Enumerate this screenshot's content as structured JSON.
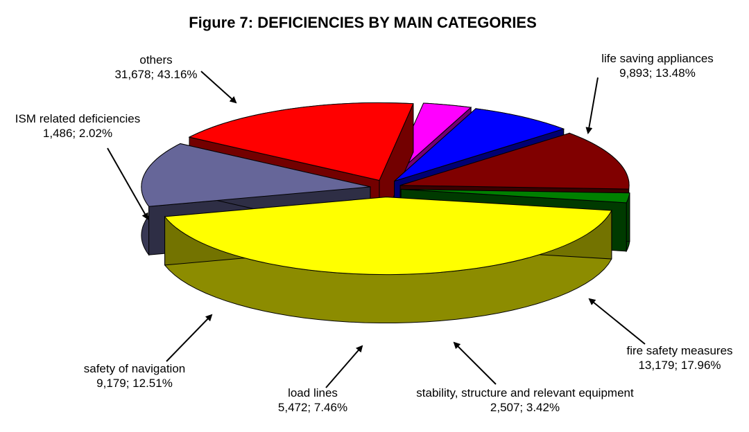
{
  "chart_data": {
    "type": "pie",
    "title": "Figure 7: DEFICIENCIES BY MAIN CATEGORIES",
    "slices": [
      {
        "name": "others",
        "count": 31678,
        "count_label": "31,678",
        "percent": 43.16,
        "percent_label": "43.16%",
        "color": "#ffff00"
      },
      {
        "name": "life saving appliances",
        "count": 9893,
        "count_label": "9,893",
        "percent": 13.48,
        "percent_label": "13.48%",
        "color": "#666699"
      },
      {
        "name": "fire safety measures",
        "count": 13179,
        "count_label": "13,179",
        "percent": 17.96,
        "percent_label": "17.96%",
        "color": "#ff0000"
      },
      {
        "name": "stability, structure and relevant equipment",
        "count": 2507,
        "count_label": "2,507",
        "percent": 3.42,
        "percent_label": "3.42%",
        "color": "#ff00ff"
      },
      {
        "name": "load lines",
        "count": 5472,
        "count_label": "5,472",
        "percent": 7.46,
        "percent_label": "7.46%",
        "color": "#0000ff"
      },
      {
        "name": "safety of navigation",
        "count": 9179,
        "count_label": "9,179",
        "percent": 12.51,
        "percent_label": "12.51%",
        "color": "#800000"
      },
      {
        "name": "ISM related deficiencies",
        "count": 1486,
        "count_label": "1,486",
        "percent": 2.02,
        "percent_label": "2.02%",
        "color": "#008000"
      }
    ],
    "style": "3d-exploded"
  }
}
